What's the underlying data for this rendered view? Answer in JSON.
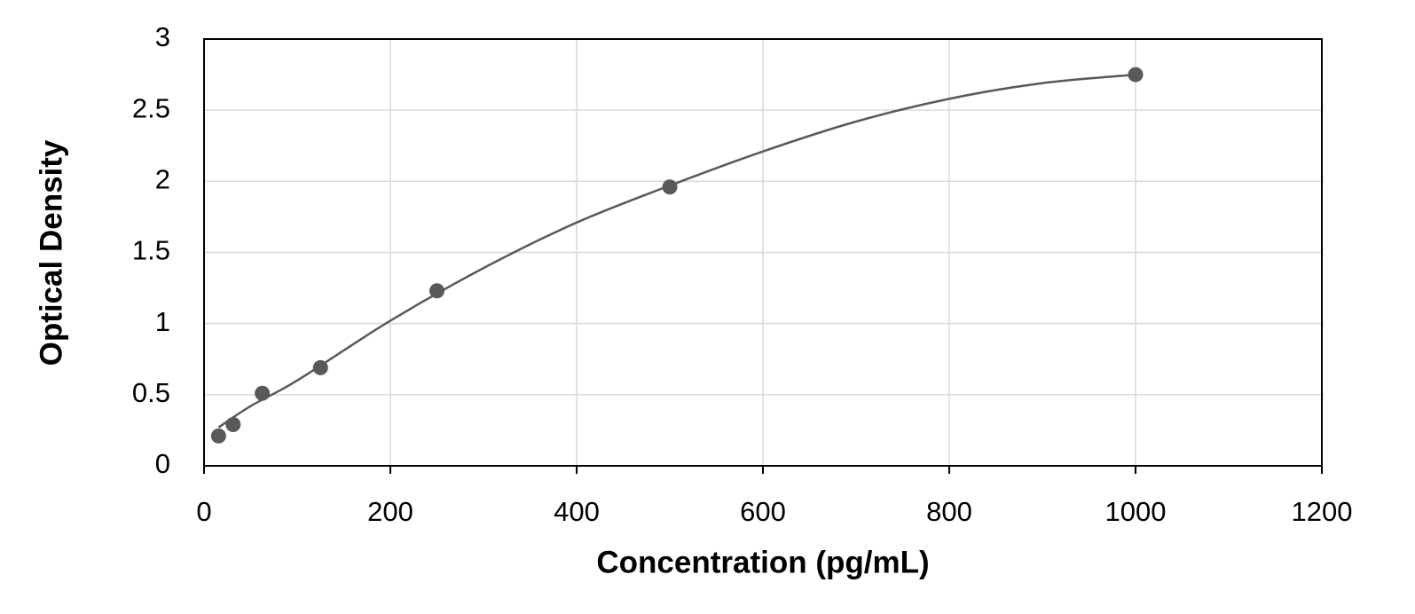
{
  "chart_data": {
    "type": "scatter",
    "x_label": "Concentration (pg/mL)",
    "y_label": "Optical Density",
    "xlim": [
      0,
      1200
    ],
    "xticks": [
      0,
      200,
      400,
      600,
      800,
      1000,
      1200
    ],
    "ylim": [
      0,
      3
    ],
    "yticks": [
      0,
      0.5,
      1,
      1.5,
      2,
      2.5,
      3
    ],
    "grid": true,
    "series": [
      {
        "style": "markers",
        "color": "#595959",
        "x": [
          15.6,
          31.25,
          62.5,
          125,
          250,
          500,
          1000
        ],
        "values": [
          0.21,
          0.29,
          0.51,
          0.69,
          1.23,
          1.96,
          2.75
        ]
      },
      {
        "style": "curve",
        "color": "#595959",
        "x": [
          15.6,
          50,
          100,
          200,
          300,
          400,
          500,
          600,
          700,
          800,
          900,
          1000
        ],
        "values": [
          0.27,
          0.42,
          0.6,
          1.02,
          1.39,
          1.71,
          1.97,
          2.21,
          2.42,
          2.58,
          2.69,
          2.75
        ]
      }
    ]
  }
}
